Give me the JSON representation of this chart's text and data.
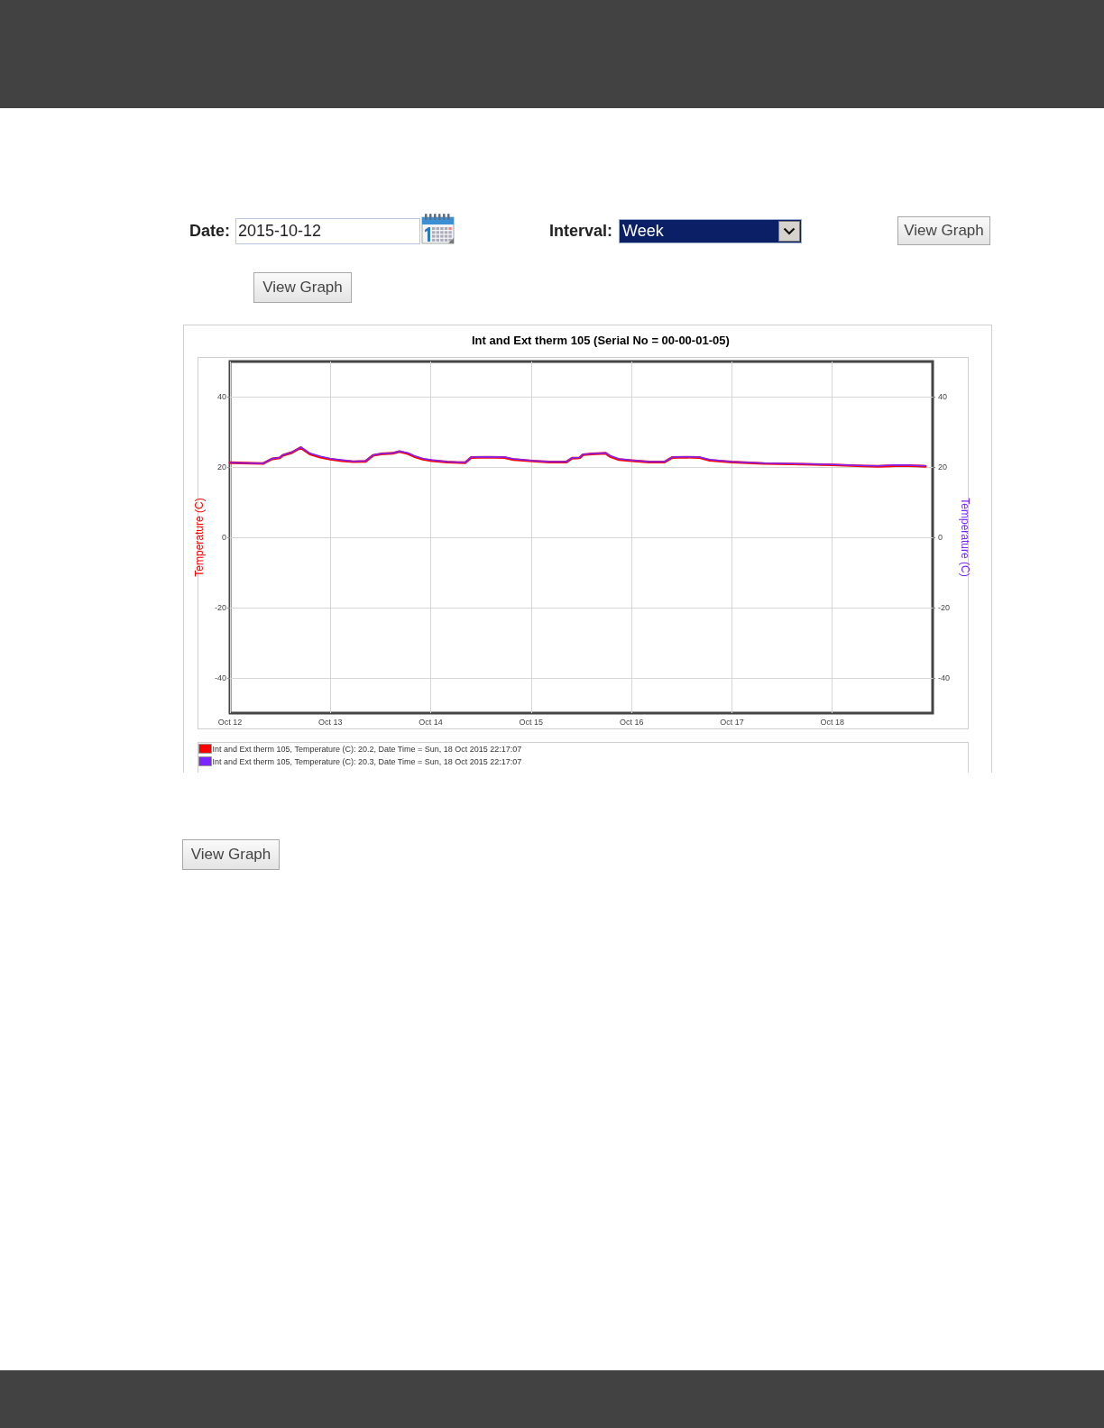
{
  "chart_data": {
    "type": "line",
    "title": "Int and Ext therm 105 (Serial No = 00-00-01-05)",
    "ylabel": "Temperature (C)",
    "y2label": "Temperature (C)",
    "x": [
      "2015-10-12T00:00",
      "2015-10-12T07:54",
      "2015-10-12T08:36",
      "2015-10-12T10:06",
      "2015-10-12T11:54",
      "2015-10-12T12:36",
      "2015-10-12T14:48",
      "2015-10-12T16:54",
      "2015-10-12T19:06",
      "2015-10-12T21:36",
      "2015-10-13T00:00",
      "2015-10-13T02:42",
      "2015-10-13T05:30",
      "2015-10-13T08:24",
      "2015-10-13T10:12",
      "2015-10-13T12:00",
      "2015-10-13T14:54",
      "2015-10-13T16:30",
      "2015-10-13T18:30",
      "2015-10-13T20:00",
      "2015-10-13T22:06",
      "2015-10-14T00:18",
      "2015-10-14T03:54",
      "2015-10-14T08:12",
      "2015-10-14T09:42",
      "2015-10-14T13:18",
      "2015-10-14T17:36",
      "2015-10-14T19:48",
      "2015-10-15T00:18",
      "2015-10-15T04:24",
      "2015-10-15T08:24",
      "2015-10-15T09:48",
      "2015-10-15T11:36",
      "2015-10-15T12:24",
      "2015-10-15T14:30",
      "2015-10-15T17:48",
      "2015-10-15T18:54",
      "2015-10-15T21:00",
      "2015-10-16T00:00",
      "2015-10-16T04:18",
      "2015-10-16T07:54",
      "2015-10-16T09:42",
      "2015-10-16T12:54",
      "2015-10-16T16:06",
      "2015-10-16T18:42",
      "2015-10-17T00:00",
      "2015-10-17T07:36",
      "2015-10-17T17:00",
      "2015-10-18T00:00",
      "2015-10-18T07:24",
      "2015-10-18T11:00",
      "2015-10-18T15:18",
      "2015-10-18T18:12",
      "2015-10-18T22:17"
    ],
    "series": [
      {
        "name": "Int and Ext therm 105, Temperature (C): 20.2, Date Time = Sun, 18 Oct 2015 22:17:07",
        "color": "#ff0000",
        "values": [
          21.2,
          21.0,
          21.4,
          22.3,
          22.6,
          23.3,
          24.1,
          25.5,
          23.7,
          22.8,
          22.2,
          21.8,
          21.5,
          21.6,
          23.3,
          23.7,
          23.9,
          24.4,
          23.8,
          23.0,
          22.2,
          21.8,
          21.4,
          21.2,
          22.7,
          22.8,
          22.7,
          22.1,
          21.7,
          21.4,
          21.4,
          22.5,
          22.6,
          23.5,
          23.7,
          23.9,
          23.0,
          22.1,
          21.8,
          21.4,
          21.4,
          22.7,
          22.8,
          22.7,
          21.9,
          21.4,
          21.0,
          20.8,
          20.6,
          20.3,
          20.2,
          20.4,
          20.4,
          20.2
        ]
      },
      {
        "name": "Int and Ext therm 105, Temperature (C): 20.3, Date Time = Sun, 18 Oct 2015 22:17:07",
        "color": "#7b26ff",
        "axis": "y2",
        "values": [
          21.2,
          21.0,
          21.5,
          22.4,
          22.7,
          23.4,
          24.2,
          25.6,
          23.9,
          23.0,
          22.4,
          22.0,
          21.6,
          21.7,
          23.4,
          23.8,
          24.0,
          24.5,
          24.0,
          23.2,
          22.4,
          22.0,
          21.5,
          21.3,
          22.8,
          22.9,
          22.8,
          22.3,
          21.8,
          21.5,
          21.5,
          22.6,
          22.7,
          23.6,
          23.8,
          24.0,
          23.2,
          22.3,
          21.9,
          21.5,
          21.5,
          22.8,
          22.9,
          22.8,
          22.1,
          21.5,
          21.1,
          20.9,
          20.7,
          20.4,
          20.3,
          20.6,
          20.5,
          20.3
        ]
      }
    ],
    "xlim": [
      "2015-10-12T00:00",
      "2015-10-19T00:00"
    ],
    "xticks": [
      {
        "value": "2015-10-12",
        "label": "Oct 12"
      },
      {
        "value": "2015-10-13",
        "label": "Oct 13"
      },
      {
        "value": "2015-10-14",
        "label": "Oct 14"
      },
      {
        "value": "2015-10-15",
        "label": "Oct 15"
      },
      {
        "value": "2015-10-16",
        "label": "Oct 16"
      },
      {
        "value": "2015-10-17",
        "label": "Oct 17"
      },
      {
        "value": "2015-10-18",
        "label": "Oct 18"
      }
    ],
    "ylim": [
      -50,
      50
    ],
    "yticks": [
      -40,
      -20,
      0,
      20,
      40
    ],
    "y2lim": [
      -50,
      50
    ],
    "y2ticks": [
      -40,
      -20,
      0,
      20,
      40
    ],
    "grid": true,
    "legend": "bottom left",
    "marker": "none",
    "annotations": [
      "Date:",
      "2015-10-12",
      "Interval:",
      "Week",
      "View Graph",
      "View Graph",
      "View Graph"
    ]
  }
}
